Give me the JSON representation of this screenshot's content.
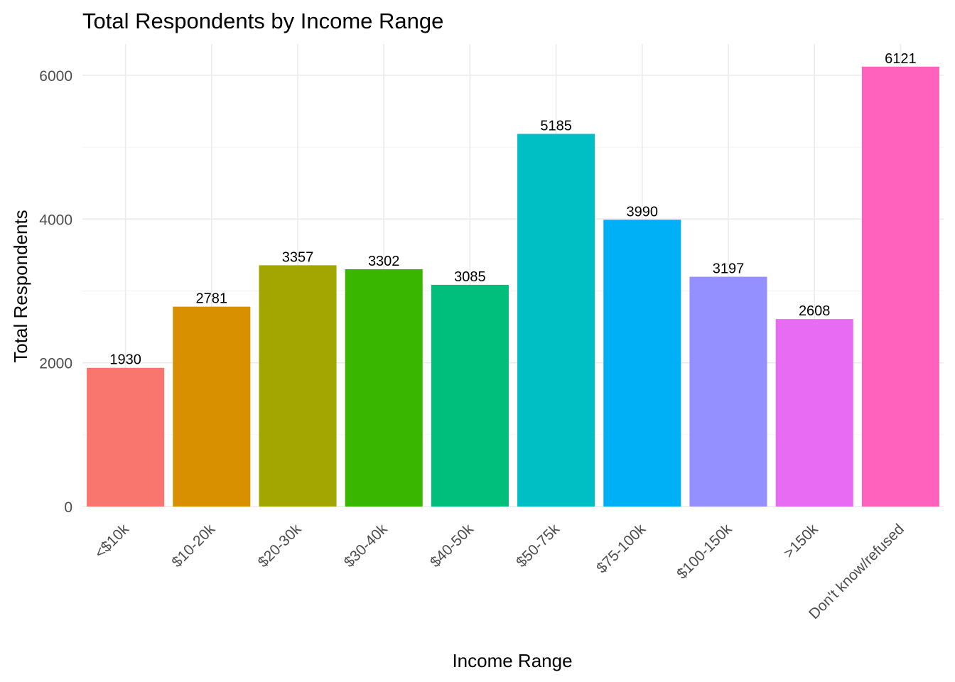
{
  "chart_data": {
    "type": "bar",
    "title": "Total Respondents by Income Range",
    "xlabel": "Income Range",
    "ylabel": "Total Respondents",
    "categories": [
      "<$10k",
      "$10-20k",
      "$20-30k",
      "$30-40k",
      "$40-50k",
      "$50-75k",
      "$75-100k",
      "$100-150k",
      ">150k",
      "Don't know/refused"
    ],
    "values": [
      1930,
      2781,
      3357,
      3302,
      3085,
      5185,
      3990,
      3197,
      2608,
      6121
    ],
    "colors": [
      "#F8766D",
      "#D89000",
      "#A3A500",
      "#39B600",
      "#00BF7D",
      "#00BFC4",
      "#00B0F6",
      "#9590FF",
      "#E76BF3",
      "#FF62BC"
    ],
    "ylim": [
      0,
      6400
    ],
    "yticks": [
      0,
      2000,
      4000,
      6000
    ],
    "y_minor_ticks": [
      1000,
      3000,
      5000
    ],
    "grid": true,
    "legend": "none",
    "theme": "minimal"
  }
}
